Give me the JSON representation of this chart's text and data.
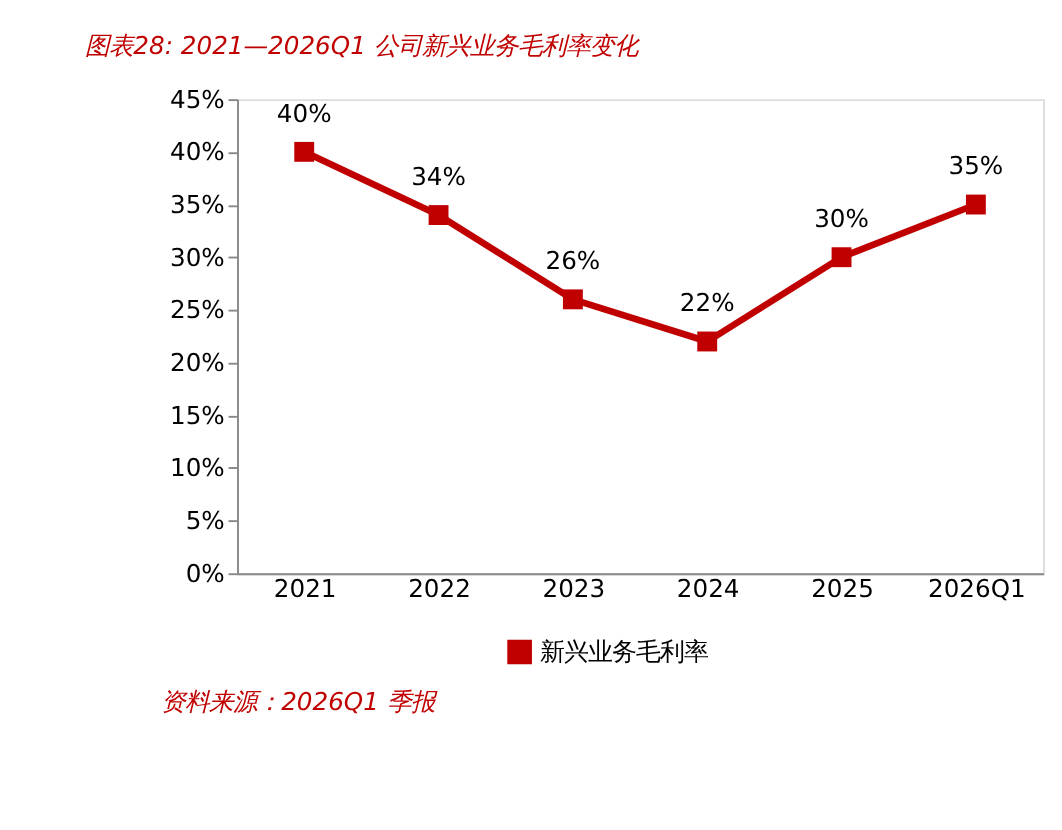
{
  "chart_data": {
    "type": "line",
    "title": "图表28: 2021—2026Q1 公司新兴业务毛利率变化",
    "categories": [
      "2021",
      "2022",
      "2023",
      "2024",
      "2025",
      "2026Q1"
    ],
    "series": [
      {
        "name": "新兴业务毛利率",
        "color": "#c00000",
        "values": [
          40,
          34,
          26,
          22,
          30,
          35
        ]
      }
    ],
    "value_labels": [
      "40%",
      "34%",
      "26%",
      "22%",
      "30%",
      "35%"
    ],
    "ylim": [
      0,
      45
    ],
    "yticks": [
      {
        "value": 0,
        "label": "0%"
      },
      {
        "value": 5,
        "label": "5%"
      },
      {
        "value": 10,
        "label": "10%"
      },
      {
        "value": 15,
        "label": "15%"
      },
      {
        "value": 20,
        "label": "20%"
      },
      {
        "value": 25,
        "label": "25%"
      },
      {
        "value": 30,
        "label": "30%"
      },
      {
        "value": 35,
        "label": "35%"
      },
      {
        "value": 40,
        "label": "40%"
      },
      {
        "value": 45,
        "label": "45%"
      }
    ],
    "grid": false,
    "legend": "bottom",
    "marker": "square",
    "line_style": "solid",
    "annotations": [
      "资料来源：2026Q1 季报"
    ]
  }
}
